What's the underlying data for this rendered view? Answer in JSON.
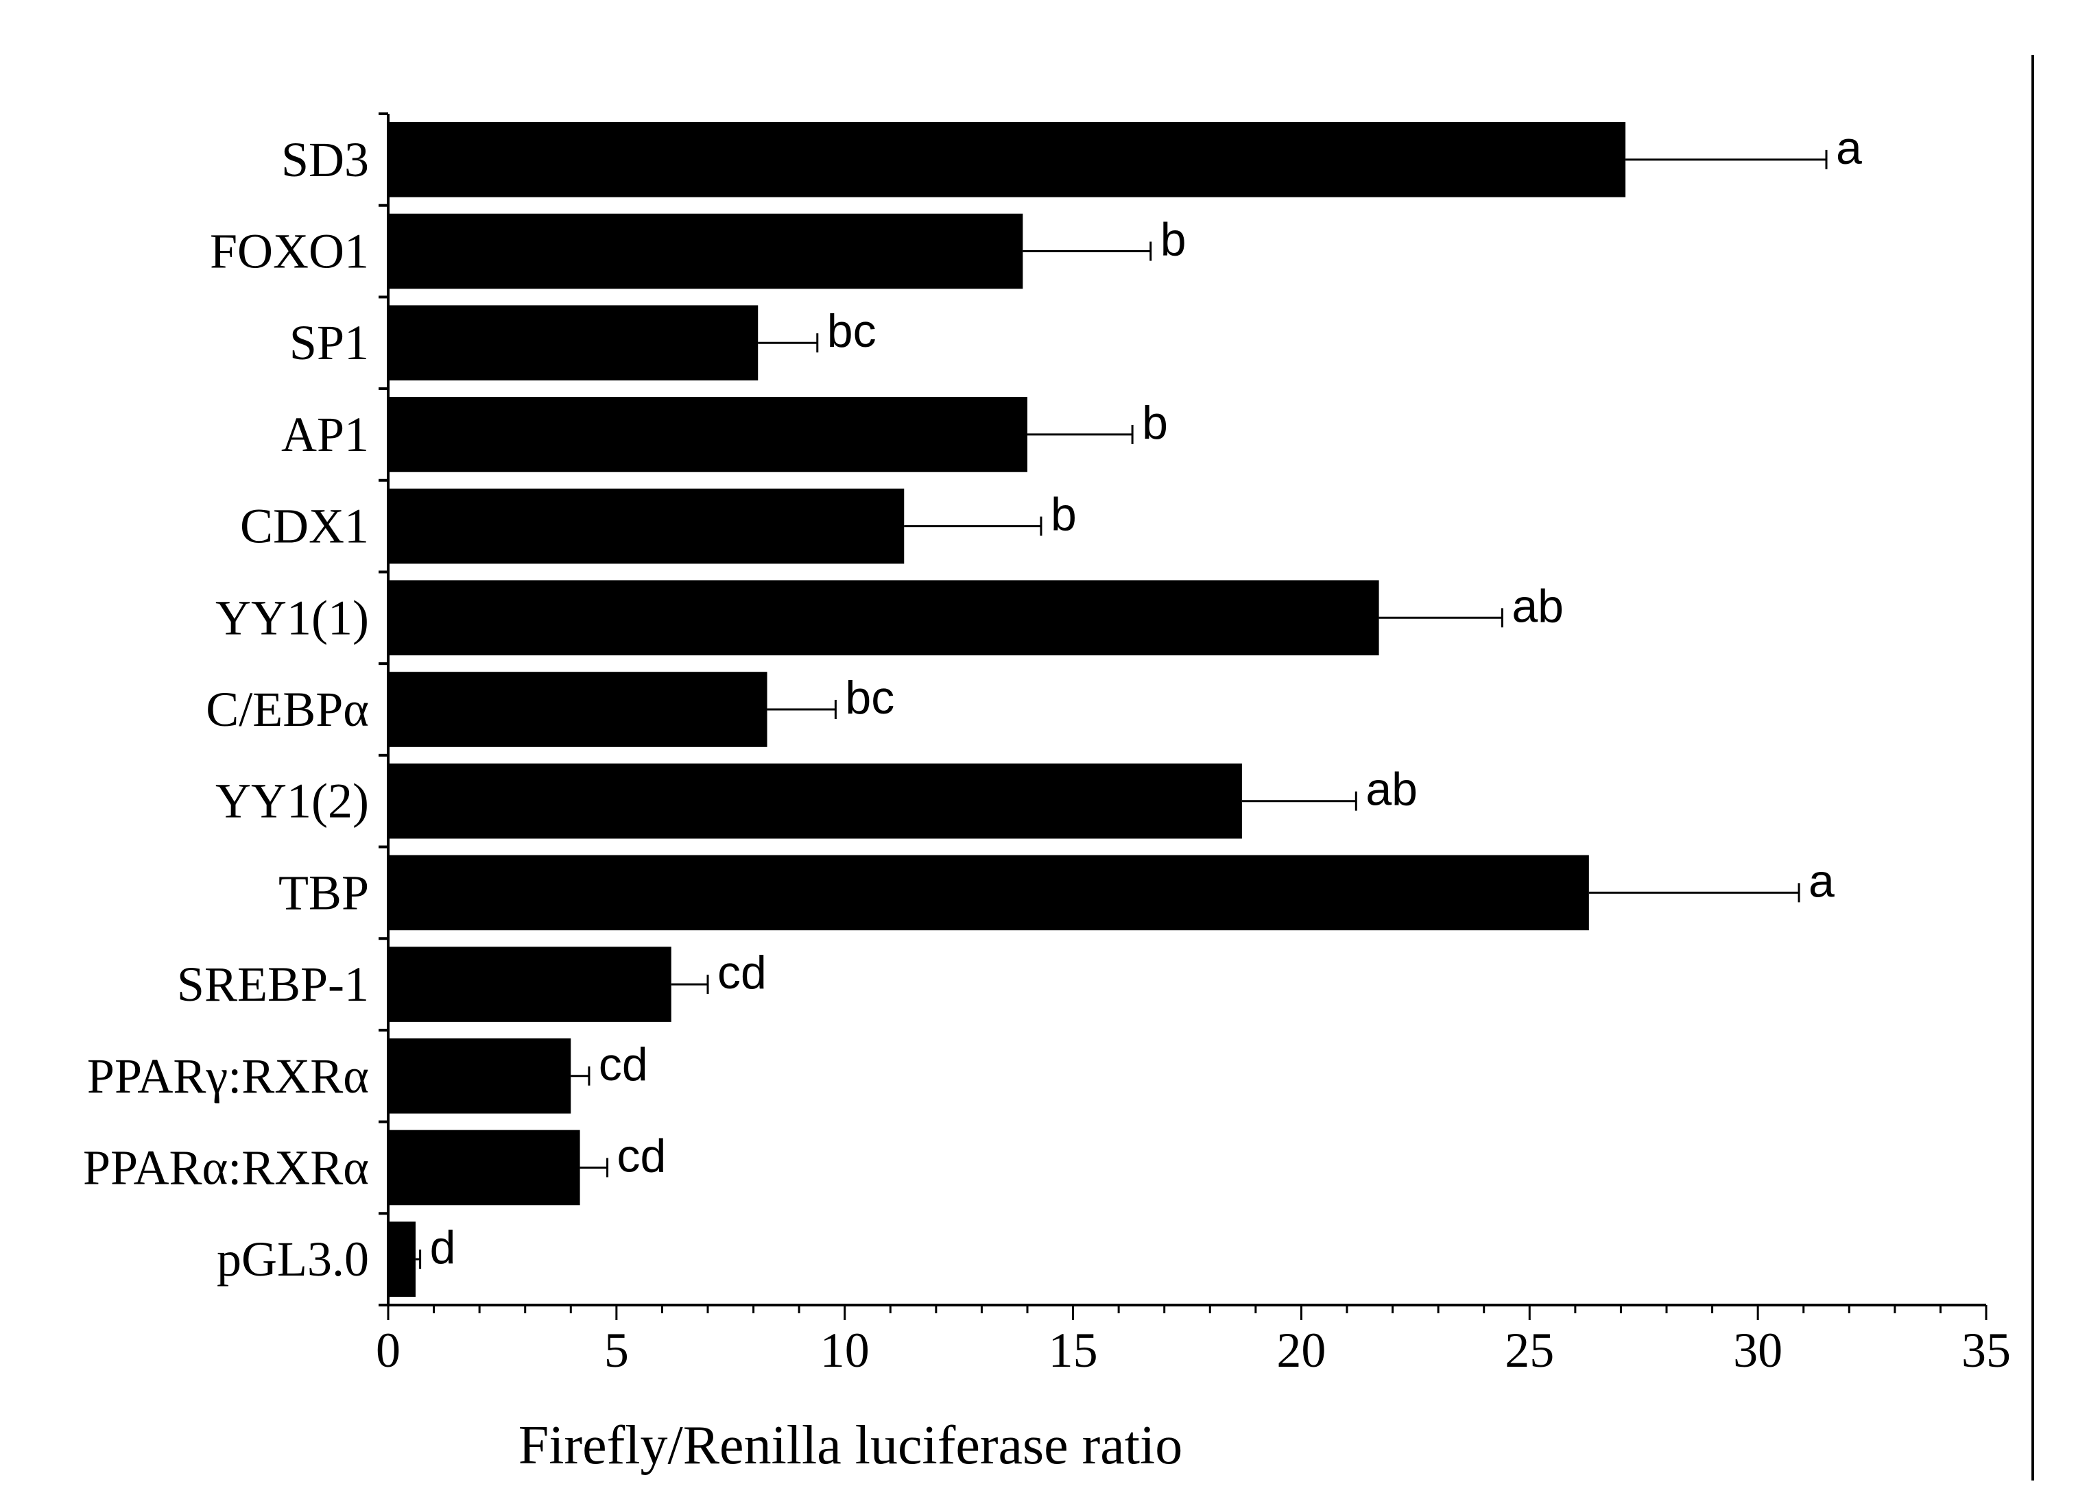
{
  "chart_data": {
    "type": "bar",
    "orientation": "horizontal",
    "categories": [
      "SD3",
      "FOXO1",
      "SP1",
      "AP1",
      "CDX1",
      "YY1(1)",
      "C/EBPα",
      "YY1(2)",
      "TBP",
      "SREBP-1",
      "PPARγ:RXRα",
      "PPARα:RXRα",
      "pGL3.0"
    ],
    "values": [
      27.1,
      13.9,
      8.1,
      14.0,
      11.3,
      21.7,
      8.3,
      18.7,
      26.3,
      6.2,
      4.0,
      4.2,
      0.6
    ],
    "errors": [
      4.4,
      2.8,
      1.3,
      2.3,
      3.0,
      2.7,
      1.5,
      2.5,
      4.6,
      0.8,
      0.4,
      0.6,
      0.1
    ],
    "significance": [
      "a",
      "b",
      "bc",
      "b",
      "b",
      "ab",
      "bc",
      "ab",
      "a",
      "cd",
      "cd",
      "cd",
      "d"
    ],
    "xlabel": "Firefly/Renilla luciferase ratio",
    "ylabel": "",
    "title": "",
    "xlim": [
      0,
      35
    ],
    "xticks": [
      "0",
      "5",
      "10",
      "15",
      "20",
      "25",
      "30",
      "35"
    ],
    "grid": false,
    "colors": {
      "bar": "#000000",
      "axis": "#000000"
    }
  }
}
